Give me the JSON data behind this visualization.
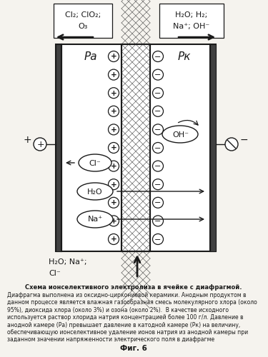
{
  "fig_label": "Фиг. 6",
  "caption_bold": "Схема ионселективного электролиза в ячейке с диафрагмой.",
  "caption_text": "Диафрагма выполнена из оксидно-циркониевой керамики. Анодным продуктом в данном процессе является влажная газообразная смесь молекулярного хлора (около 95%), диоксида хлора (около 3%) и озона (около 2%).  В качестве исходного используется раствор хлорида натрия концентрацией более 100 г/л. Давление в анодной камере (Ра) превышает давление в катодной камере (Рк) на величину, обеспечивающую ионселективное удаление ионов натрия из анодной камеры при заданном значении напряженности электрического поля в диафрагме",
  "top_left_label_line1": "Cl₂; ClO₂;",
  "top_left_label_line2": "O₃",
  "top_right_label_line1": "H₂O; H₂;",
  "top_right_label_line2": "Na⁺; OH⁻",
  "bottom_label_line1": "H₂O; Na⁺;",
  "bottom_label_line2": "Cl⁻",
  "Pa_label": "Pа",
  "Pk_label": "Pк",
  "bg_color": "#f5f3ee",
  "box_facecolor": "#ffffff",
  "line_color": "#1a1a1a"
}
